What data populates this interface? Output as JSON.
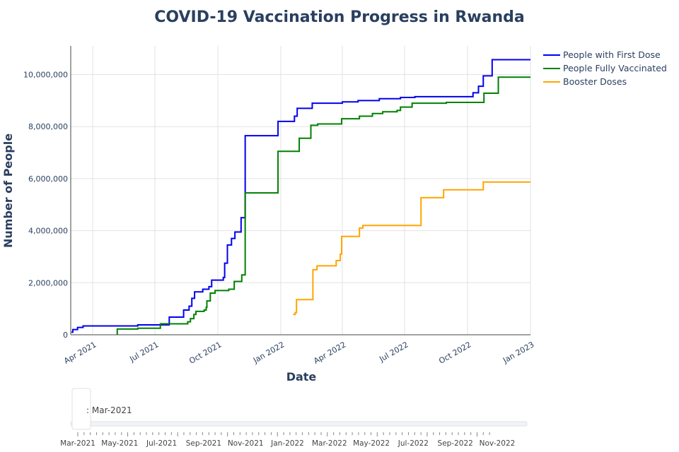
{
  "chart_data": {
    "type": "line",
    "title": "COVID-19 Vaccination Progress in Rwanda",
    "xlabel": "Date",
    "ylabel": "Number of People",
    "xlim": [
      "2021-02-28",
      "2023-01-01"
    ],
    "ylim": [
      0,
      11100000
    ],
    "grid": true,
    "legend_placement": "top-right",
    "x_ticks": [
      "2021-04-01",
      "2021-07-01",
      "2021-10-01",
      "2022-01-01",
      "2022-04-01",
      "2022-07-01",
      "2022-10-01",
      "2023-01-01"
    ],
    "x_tick_labels": [
      "Apr 2021",
      "Jul 2021",
      "Oct 2021",
      "Jan 2022",
      "Apr 2022",
      "Jul 2022",
      "Oct 2022",
      "Jan 2023"
    ],
    "y_ticks": [
      0,
      2000000,
      4000000,
      6000000,
      8000000,
      10000000
    ],
    "y_tick_labels": [
      "0",
      "2,000,000",
      "4,000,000",
      "6,000,000",
      "8,000,000",
      "10,000,000"
    ],
    "series": [
      {
        "name": "People with First Dose",
        "color": "#0000ee",
        "points": [
          [
            "2021-03-01",
            100000
          ],
          [
            "2021-03-03",
            200000
          ],
          [
            "2021-03-10",
            280000
          ],
          [
            "2021-03-18",
            340000
          ],
          [
            "2021-06-06",
            380000
          ],
          [
            "2021-07-22",
            680000
          ],
          [
            "2021-08-12",
            950000
          ],
          [
            "2021-08-20",
            1100000
          ],
          [
            "2021-08-24",
            1400000
          ],
          [
            "2021-08-28",
            1650000
          ],
          [
            "2021-09-09",
            1750000
          ],
          [
            "2021-09-18",
            1850000
          ],
          [
            "2021-09-22",
            2100000
          ],
          [
            "2021-10-09",
            2200000
          ],
          [
            "2021-10-11",
            2750000
          ],
          [
            "2021-10-15",
            3450000
          ],
          [
            "2021-10-21",
            3700000
          ],
          [
            "2021-10-26",
            3950000
          ],
          [
            "2021-11-04",
            4500000
          ],
          [
            "2021-11-10",
            7650000
          ],
          [
            "2021-12-28",
            8200000
          ],
          [
            "2022-01-21",
            8400000
          ],
          [
            "2022-01-25",
            8700000
          ],
          [
            "2022-02-16",
            8900000
          ],
          [
            "2022-04-01",
            8950000
          ],
          [
            "2022-04-24",
            9000000
          ],
          [
            "2022-05-25",
            9070000
          ],
          [
            "2022-06-25",
            9120000
          ],
          [
            "2022-07-16",
            9150000
          ],
          [
            "2022-10-09",
            9300000
          ],
          [
            "2022-10-17",
            9550000
          ],
          [
            "2022-10-24",
            9950000
          ],
          [
            "2022-11-06",
            10570000
          ],
          [
            "2023-01-01",
            10570000
          ]
        ]
      },
      {
        "name": "People Fully Vaccinated",
        "color": "#008000",
        "points": [
          [
            "2021-05-07",
            0
          ],
          [
            "2021-05-07",
            220000
          ],
          [
            "2021-06-06",
            250000
          ],
          [
            "2021-07-09",
            420000
          ],
          [
            "2021-08-18",
            500000
          ],
          [
            "2021-08-22",
            620000
          ],
          [
            "2021-08-27",
            780000
          ],
          [
            "2021-08-30",
            900000
          ],
          [
            "2021-09-11",
            950000
          ],
          [
            "2021-09-14",
            1050000
          ],
          [
            "2021-09-15",
            1300000
          ],
          [
            "2021-09-20",
            1600000
          ],
          [
            "2021-09-27",
            1700000
          ],
          [
            "2021-10-17",
            1750000
          ],
          [
            "2021-10-25",
            2050000
          ],
          [
            "2021-11-05",
            2300000
          ],
          [
            "2021-11-10",
            5450000
          ],
          [
            "2021-12-28",
            7050000
          ],
          [
            "2022-01-28",
            7550000
          ],
          [
            "2022-02-14",
            8050000
          ],
          [
            "2022-02-24",
            8100000
          ],
          [
            "2022-03-31",
            8300000
          ],
          [
            "2022-04-26",
            8400000
          ],
          [
            "2022-05-15",
            8500000
          ],
          [
            "2022-05-30",
            8570000
          ],
          [
            "2022-06-20",
            8620000
          ],
          [
            "2022-06-25",
            8750000
          ],
          [
            "2022-07-12",
            8900000
          ],
          [
            "2022-08-31",
            8930000
          ],
          [
            "2022-10-25",
            9280000
          ],
          [
            "2022-11-15",
            9900000
          ],
          [
            "2023-01-01",
            9900000
          ]
        ]
      },
      {
        "name": "Booster Doses",
        "color": "#ffa500",
        "points": [
          [
            "2022-01-19",
            780000
          ],
          [
            "2022-01-22",
            850000
          ],
          [
            "2022-01-24",
            1350000
          ],
          [
            "2022-02-17",
            2500000
          ],
          [
            "2022-02-23",
            2650000
          ],
          [
            "2022-03-23",
            2850000
          ],
          [
            "2022-03-29",
            3100000
          ],
          [
            "2022-03-31",
            3780000
          ],
          [
            "2022-04-26",
            4100000
          ],
          [
            "2022-05-01",
            4200000
          ],
          [
            "2022-07-25",
            5270000
          ],
          [
            "2022-08-27",
            5570000
          ],
          [
            "2022-10-24",
            5870000
          ],
          [
            "2023-01-01",
            5870000
          ]
        ]
      }
    ]
  },
  "range_slider": {
    "current_label": ": Mar-2021",
    "tick_labels": [
      "Mar-2021",
      "May-2021",
      "Jul-2021",
      "Sep-2021",
      "Nov-2021",
      "Jan-2022",
      "Mar-2022",
      "May-2022",
      "Jul-2022",
      "Sep-2022",
      "Nov-2022"
    ]
  }
}
